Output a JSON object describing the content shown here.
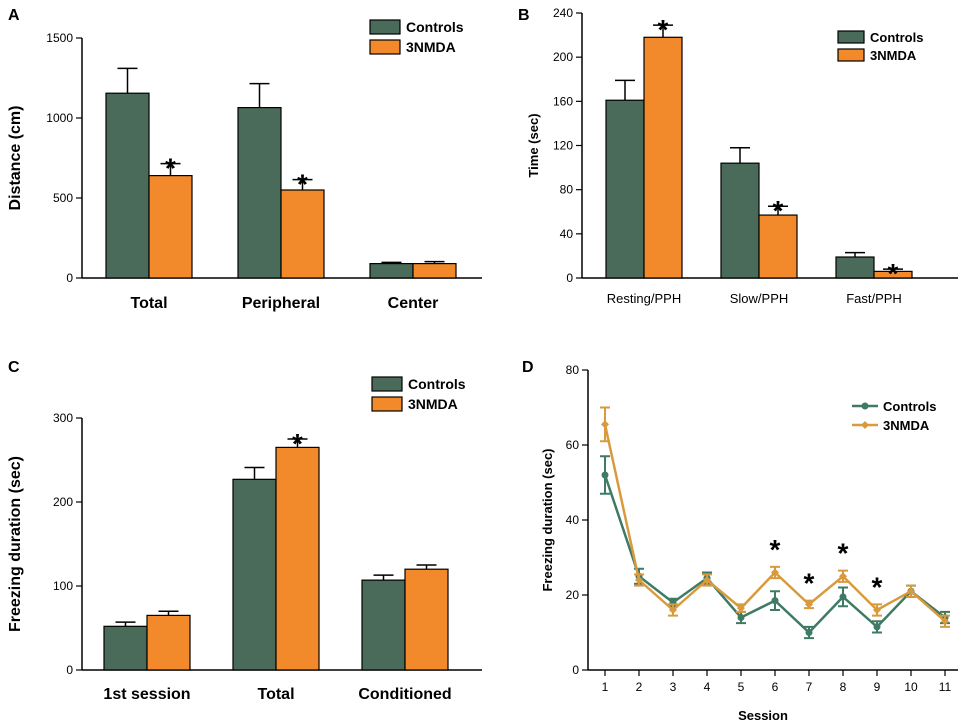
{
  "figure": {
    "colors": {
      "controls_bar": "#4a6b59",
      "nmda_bar": "#f28a2b",
      "controls_line": "#3e7a64",
      "nmda_line": "#d99a3e"
    }
  },
  "chart_data": [
    {
      "panel": "A",
      "type": "bar",
      "title": "",
      "xlabel": "",
      "ylabel": "Distance (cm)",
      "ylim": [
        0,
        1500
      ],
      "yticks": [
        0,
        500,
        1000,
        1500
      ],
      "categories": [
        "Total",
        "Peripheral",
        "Center"
      ],
      "series": [
        {
          "name": "Controls",
          "values": [
            1155,
            1065,
            90
          ],
          "errors": [
            155,
            150,
            8
          ]
        },
        {
          "name": "3NMDA",
          "values": [
            640,
            550,
            90
          ],
          "errors": [
            75,
            65,
            12
          ]
        }
      ],
      "significance": [
        {
          "category": "Total",
          "series": "3NMDA",
          "label": "*"
        },
        {
          "category": "Peripheral",
          "series": "3NMDA",
          "label": "*"
        }
      ],
      "legend": [
        "Controls",
        "3NMDA"
      ],
      "legend_position": "top-right"
    },
    {
      "panel": "B",
      "type": "bar",
      "title": "",
      "xlabel": "",
      "ylabel": "Time (sec)",
      "ylim": [
        0,
        240
      ],
      "yticks": [
        0,
        40,
        80,
        120,
        160,
        200,
        240
      ],
      "categories": [
        "Resting/PPH",
        "Slow/PPH",
        "Fast/PPH"
      ],
      "series": [
        {
          "name": "Controls",
          "values": [
            161,
            104,
            19
          ],
          "errors": [
            18,
            14,
            4
          ]
        },
        {
          "name": "3NMDA",
          "values": [
            218,
            57,
            6
          ],
          "errors": [
            11,
            8,
            2
          ]
        }
      ],
      "significance": [
        {
          "category": "Resting/PPH",
          "series": "3NMDA",
          "label": "*"
        },
        {
          "category": "Slow/PPH",
          "series": "3NMDA",
          "label": "*"
        },
        {
          "category": "Fast/PPH",
          "series": "3NMDA",
          "label": "*"
        }
      ],
      "legend": [
        "Controls",
        "3NMDA"
      ],
      "legend_position": "top-right"
    },
    {
      "panel": "C",
      "type": "bar",
      "title": "",
      "xlabel": "",
      "ylabel": "Freezing duration (sec)",
      "ylim": [
        0,
        300
      ],
      "yticks": [
        0,
        100,
        200,
        300
      ],
      "categories": [
        "1st session",
        "Total",
        "Conditioned"
      ],
      "series": [
        {
          "name": "Controls",
          "values": [
            52,
            227,
            107
          ],
          "errors": [
            5,
            14,
            6
          ]
        },
        {
          "name": "3NMDA",
          "values": [
            65,
            265,
            120
          ],
          "errors": [
            5,
            10,
            5
          ]
        }
      ],
      "significance": [
        {
          "category": "Total",
          "series": "3NMDA",
          "label": "*"
        }
      ],
      "legend": [
        "Controls",
        "3NMDA"
      ],
      "legend_position": "top-right"
    },
    {
      "panel": "D",
      "type": "line",
      "title": "",
      "xlabel": "Session",
      "ylabel": "Freezing duration (sec)",
      "ylim": [
        0,
        80
      ],
      "yticks": [
        0,
        20,
        40,
        60,
        80
      ],
      "x": [
        1,
        2,
        3,
        4,
        5,
        6,
        7,
        8,
        9,
        10,
        11
      ],
      "series": [
        {
          "name": "Controls",
          "values": [
            52,
            25,
            18,
            24.5,
            14,
            18.5,
            10,
            19.5,
            11.5,
            21,
            14
          ],
          "errors": [
            5,
            2,
            1,
            1.5,
            1.5,
            2.5,
            1.5,
            2.5,
            1.5,
            1.5,
            1.5
          ]
        },
        {
          "name": "3NMDA",
          "values": [
            65.5,
            24,
            16,
            24,
            16.5,
            26,
            17.5,
            25,
            16,
            21,
            13
          ],
          "errors": [
            4.5,
            1.5,
            1.5,
            1.5,
            1,
            1.5,
            1,
            1.5,
            1.5,
            1.5,
            1.5
          ]
        }
      ],
      "significance": [
        {
          "x": 6,
          "label": "*"
        },
        {
          "x": 7,
          "label": "*"
        },
        {
          "x": 8,
          "label": "*"
        },
        {
          "x": 9,
          "label": "*"
        }
      ],
      "legend": [
        "Controls",
        "3NMDA"
      ],
      "legend_position": "top-right"
    }
  ]
}
